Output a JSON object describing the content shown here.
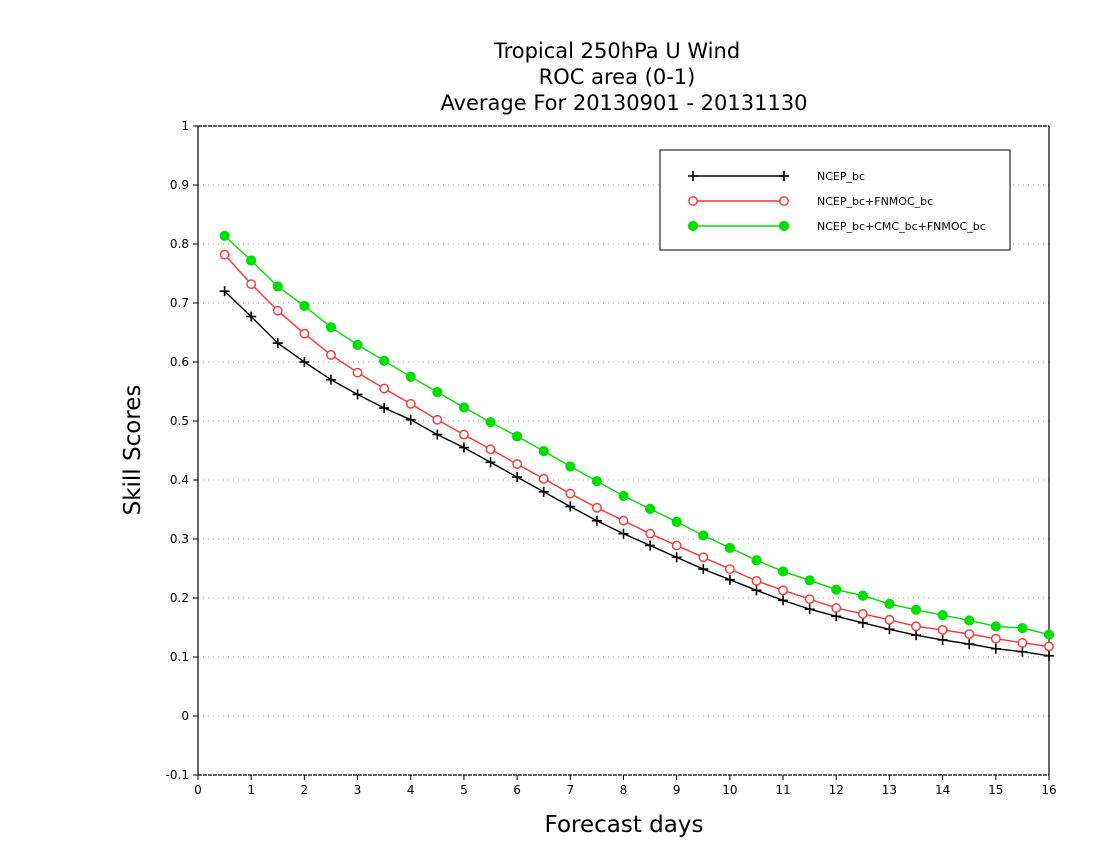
{
  "chart_data": {
    "type": "line",
    "title_lines": [
      "Tropical 250hPa U Wind",
      "ROC area (0-1)",
      "Average For 20130901 - 20131130"
    ],
    "xlabel": "Forecast days",
    "ylabel": "Skill Scores",
    "xlim": [
      0,
      16
    ],
    "ylim": [
      -0.1,
      1
    ],
    "x_ticks": [
      0,
      1,
      2,
      3,
      4,
      5,
      6,
      7,
      8,
      9,
      10,
      11,
      12,
      13,
      14,
      15,
      16
    ],
    "x_tick_labels": [
      "0",
      "1",
      "2",
      "3",
      "4",
      "5",
      "6",
      "7",
      "8",
      "9",
      "10",
      "11",
      "12",
      "13",
      "14",
      "15",
      "16"
    ],
    "y_ticks": [
      -0.1,
      0,
      0.1,
      0.2,
      0.3,
      0.4,
      0.5,
      0.6,
      0.7,
      0.8,
      0.9,
      1
    ],
    "y_tick_labels": [
      "-0.1",
      "0",
      "0.1",
      "0.2",
      "0.3",
      "0.4",
      "0.5",
      "0.6",
      "0.7",
      "0.8",
      "0.9",
      "1"
    ],
    "grid": "horizontal dotted",
    "legend_placement": "top-right",
    "x": [
      0.5,
      1,
      1.5,
      2,
      2.5,
      3,
      3.5,
      4,
      4.5,
      5,
      5.5,
      6,
      6.5,
      7,
      7.5,
      8,
      8.5,
      9,
      9.5,
      10,
      10.5,
      11,
      11.5,
      12,
      12.5,
      13,
      13.5,
      14,
      14.5,
      15,
      15.5,
      16
    ],
    "series": [
      {
        "name": "NCEP_bc",
        "color": "#000000",
        "marker": "plus",
        "values": [
          0.72,
          0.677,
          0.632,
          0.6,
          0.57,
          0.545,
          0.522,
          0.502,
          0.477,
          0.455,
          0.43,
          0.405,
          0.38,
          0.355,
          0.331,
          0.309,
          0.289,
          0.269,
          0.249,
          0.231,
          0.213,
          0.196,
          0.181,
          0.169,
          0.158,
          0.147,
          0.137,
          0.129,
          0.122,
          0.114,
          0.109,
          0.102
        ]
      },
      {
        "name": "NCEP_bc+FNMOC_bc",
        "color": "#ff3333",
        "marker": "open-circle",
        "values": [
          0.782,
          0.732,
          0.687,
          0.648,
          0.612,
          0.582,
          0.555,
          0.529,
          0.502,
          0.477,
          0.452,
          0.427,
          0.402,
          0.377,
          0.353,
          0.331,
          0.309,
          0.289,
          0.269,
          0.249,
          0.229,
          0.213,
          0.198,
          0.183,
          0.173,
          0.163,
          0.152,
          0.146,
          0.139,
          0.131,
          0.124,
          0.118
        ]
      },
      {
        "name": "NCEP_bc+CMC_bc+FNMOC_bc",
        "color": "#00dd00",
        "marker": "filled-circle",
        "values": [
          0.814,
          0.772,
          0.728,
          0.695,
          0.659,
          0.629,
          0.602,
          0.575,
          0.549,
          0.523,
          0.498,
          0.474,
          0.449,
          0.423,
          0.398,
          0.373,
          0.351,
          0.329,
          0.306,
          0.285,
          0.264,
          0.245,
          0.23,
          0.214,
          0.204,
          0.19,
          0.18,
          0.171,
          0.162,
          0.152,
          0.149,
          0.138
        ]
      }
    ]
  }
}
